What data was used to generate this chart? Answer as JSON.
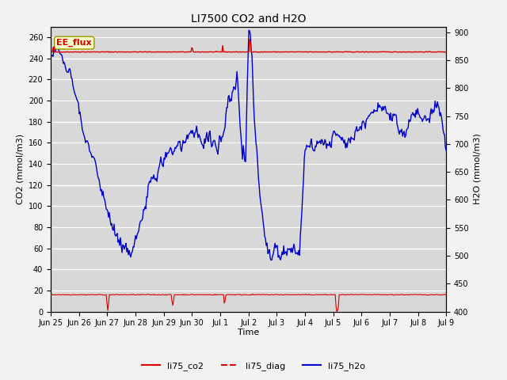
{
  "title": "LI7500 CO2 and H2O",
  "xlabel": "Time",
  "ylabel_left": "CO2 (mmol/m3)",
  "ylabel_right": "H2O (mmol/m3)",
  "ylim_left": [
    0,
    270
  ],
  "ylim_right": [
    400,
    910
  ],
  "annotation_text": "EE_flux",
  "annotation_box_color": "#ffffcc",
  "annotation_box_edgecolor": "#999900",
  "annotation_text_color": "#cc0000",
  "x_tick_labels": [
    "Jun 25",
    "Jun 26",
    "Jun 27",
    "Jun 28",
    "Jun 29",
    "Jun 30",
    "Jul 1",
    "Jul 2",
    "Jul 3",
    "Jul 4",
    "Jul 5",
    "Jul 6",
    "Jul 7",
    "Jul 8",
    "Jul 9"
  ],
  "co2_color": "#dd0000",
  "diag_color": "#dd0000",
  "h2o_color": "#0000cc",
  "plot_bg_color": "#d8d8d8",
  "fig_bg_color": "#f2f2f2",
  "grid_color": "#ffffff",
  "legend_labels": [
    "li75_co2",
    "li75_diag",
    "li75_h2o"
  ],
  "legend_colors": [
    "#dd0000",
    "#dd0000",
    "#0000cc"
  ]
}
